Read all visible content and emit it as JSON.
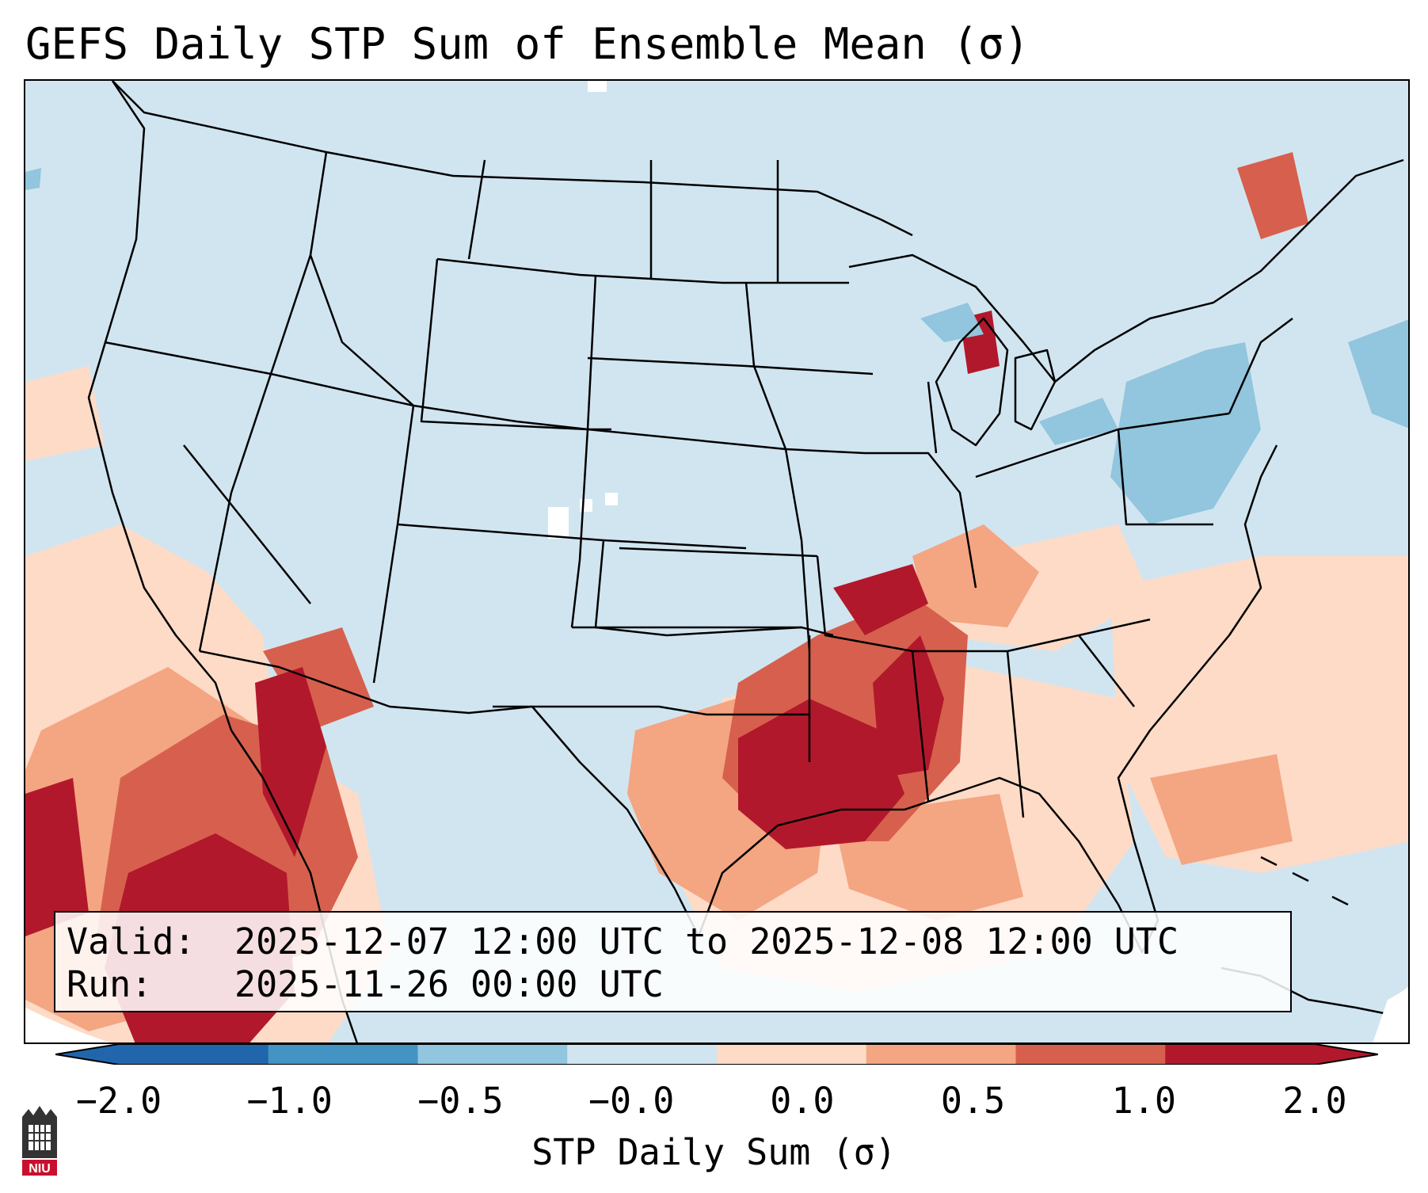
{
  "title": "GEFS Daily STP Sum of Ensemble Mean (σ)",
  "info": {
    "valid_label": "Valid:",
    "valid_value": "2025-12-07 12:00 UTC to 2025-12-08 12:00 UTC",
    "run_label": "Run:",
    "run_value": "2025-11-26 00:00 UTC"
  },
  "colorbar": {
    "label": "STP Daily Sum (σ)",
    "ticks": [
      "−2.0",
      "−1.0",
      "−0.5",
      "−0.0",
      "0.0",
      "0.5",
      "1.0",
      "2.0"
    ],
    "colors": [
      "#2166ac",
      "#4393c3",
      "#92c5de",
      "#d1e5f0",
      "#fddbc7",
      "#f4a582",
      "#d6604d",
      "#b2182b"
    ],
    "under_color": "#2166ac",
    "over_color": "#b2182b"
  },
  "map": {
    "background_color": "#d1e5f0",
    "state_boundary_color": "#000000"
  },
  "logo": {
    "name": "niu-logo-icon",
    "text": "NIU"
  }
}
